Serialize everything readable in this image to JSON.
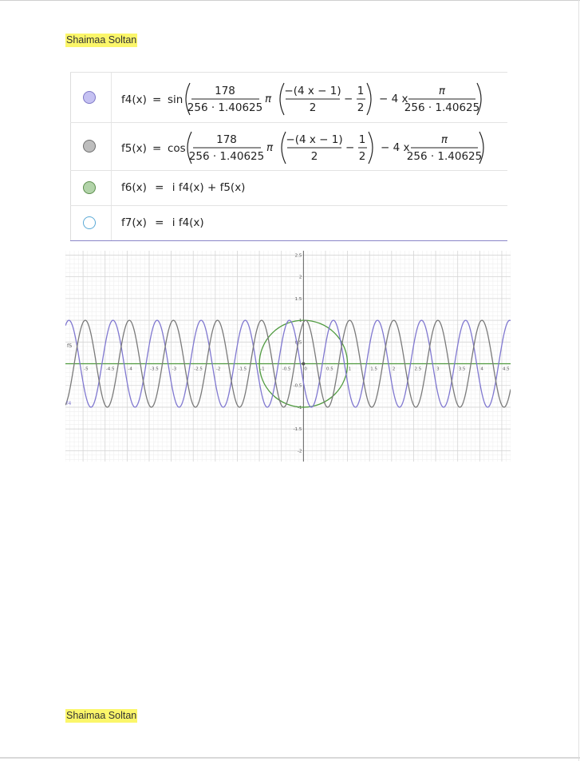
{
  "document": {
    "author_header": "Shaimaa Soltan",
    "author_footer": "Shaimaa Soltan"
  },
  "algebra": {
    "rows": [
      {
        "name": "f4",
        "dot_color": "#c5c1f2",
        "dot_border": "#7f79c7",
        "filled": true,
        "lhs": "f4(x)",
        "fn": "sin",
        "num1": "178",
        "den1": "256 · 1.40625",
        "pi": "π",
        "inner_num": "−(4 x − 1)",
        "inner_den": "2",
        "minus": "−",
        "half_num": "1",
        "half_den": "2",
        "tail": "− 4 x",
        "num2": "π",
        "den2": "256 · 1.40625"
      },
      {
        "name": "f5",
        "dot_color": "#bdbdbd",
        "dot_border": "#6f6f6f",
        "filled": true,
        "lhs": "f5(x)",
        "fn": "cos",
        "num1": "178",
        "den1": "256 · 1.40625",
        "pi": "π",
        "inner_num": "−(4 x − 1)",
        "inner_den": "2",
        "minus": "−",
        "half_num": "1",
        "half_den": "2",
        "tail": "− 4 x",
        "num2": "π",
        "den2": "256 · 1.40625"
      },
      {
        "name": "f6",
        "dot_color": "#b2d3a9",
        "dot_border": "#5c8f4d",
        "filled": true,
        "lhs": "f6(x)",
        "rhs": "i f4(x) + f5(x)"
      },
      {
        "name": "f7",
        "dot_color": "#ffffff",
        "dot_border": "#5aa9d6",
        "filled": false,
        "lhs": "f7(x)",
        "rhs": "i f4(x)"
      }
    ]
  },
  "chart_data": {
    "type": "line",
    "xlim": [
      -5.4,
      4.7
    ],
    "ylim": [
      -2.25,
      2.6
    ],
    "grid": true,
    "x_tick_labels": [
      "-5",
      "-4.5",
      "-4",
      "-3.5",
      "-3",
      "-2.5",
      "-2",
      "-1.5",
      "-1",
      "-0.5",
      "0",
      "0.5",
      "1",
      "1.5",
      "2",
      "2.5",
      "3",
      "3.5",
      "4",
      "4.5"
    ],
    "y_tick_labels": [
      "2.5",
      "2",
      "1.5",
      "1",
      "0.5",
      "-0.5",
      "-1",
      "-1.5",
      "-2"
    ],
    "curve_labels": [
      "f5",
      "f4"
    ],
    "series": [
      {
        "name": "f4",
        "kind": "sine",
        "amplitude": 1,
        "period": 1,
        "zero_crossing": -0.07,
        "color": "#8078d0"
      },
      {
        "name": "f5",
        "kind": "cosine",
        "amplitude": 1,
        "period": 1,
        "peak_x": 0.05,
        "color": "#7a7a7a"
      },
      {
        "name": "f6",
        "kind": "circle",
        "center": [
          0,
          0
        ],
        "radius": 1,
        "color": "#4f9a3f"
      },
      {
        "name": "f7",
        "kind": "line",
        "y": 0,
        "color": "#4f9a3f"
      }
    ]
  }
}
